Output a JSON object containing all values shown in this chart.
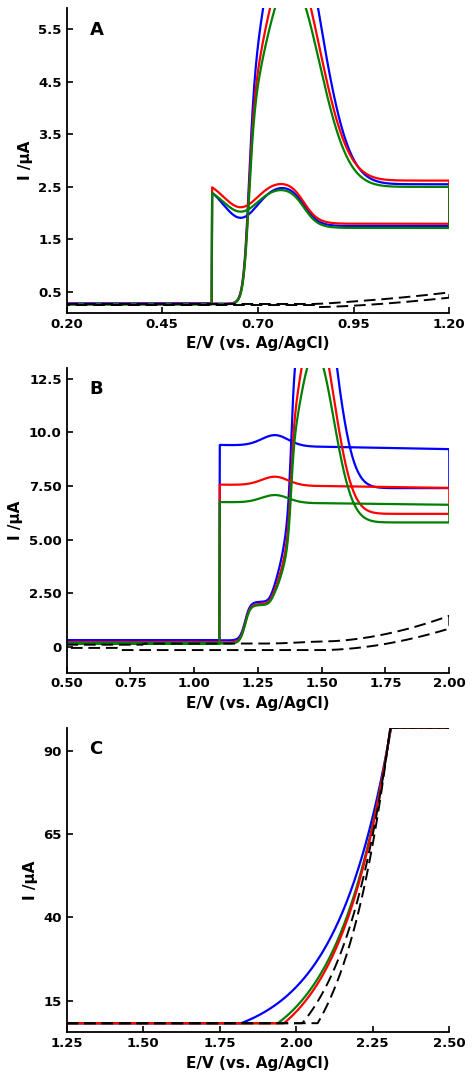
{
  "panel_A": {
    "label": "A",
    "xlim": [
      0.2,
      1.2
    ],
    "ylim": [
      0.1,
      5.9
    ],
    "xticks": [
      0.2,
      0.45,
      0.7,
      0.95,
      1.2
    ],
    "xtick_labels": [
      "0.20",
      "0.45",
      "0.70",
      "0.95",
      "1.20"
    ],
    "yticks": [
      0.5,
      1.5,
      2.5,
      3.5,
      4.5,
      5.5
    ],
    "ytick_labels": [
      "0.5",
      "1.5",
      "2.5",
      "3.5",
      "4.5",
      "5.5"
    ],
    "xlabel": "E/V (vs. Ag/AgCl)",
    "ylabel": "I /μA"
  },
  "panel_B": {
    "label": "B",
    "xlim": [
      0.5,
      2.0
    ],
    "ylim": [
      -1.2,
      13.0
    ],
    "xticks": [
      0.5,
      0.75,
      1.0,
      1.25,
      1.5,
      1.75,
      2.0
    ],
    "xtick_labels": [
      "0.50",
      "0.75",
      "1.00",
      "1.25",
      "1.50",
      "1.75",
      "2.00"
    ],
    "yticks": [
      0.0,
      2.5,
      5.0,
      7.5,
      10.0,
      12.5
    ],
    "ytick_labels": [
      "0",
      "2.50",
      "5.00",
      "7.50",
      "10.0",
      "12.5"
    ],
    "xlabel": "E/V (vs. Ag/AgCl)",
    "ylabel": "I /μA"
  },
  "panel_C": {
    "label": "C",
    "xlim": [
      1.25,
      2.5
    ],
    "ylim": [
      5.5,
      97.0
    ],
    "xticks": [
      1.25,
      1.5,
      1.75,
      2.0,
      2.25,
      2.5
    ],
    "xtick_labels": [
      "1.25",
      "1.50",
      "1.75",
      "2.00",
      "2.25",
      "2.50"
    ],
    "yticks": [
      15,
      40,
      65,
      90
    ],
    "ytick_labels": [
      "15",
      "40",
      "65",
      "90"
    ],
    "xlabel": "E/V (vs. Ag/AgCl)",
    "ylabel": "I /μA"
  }
}
